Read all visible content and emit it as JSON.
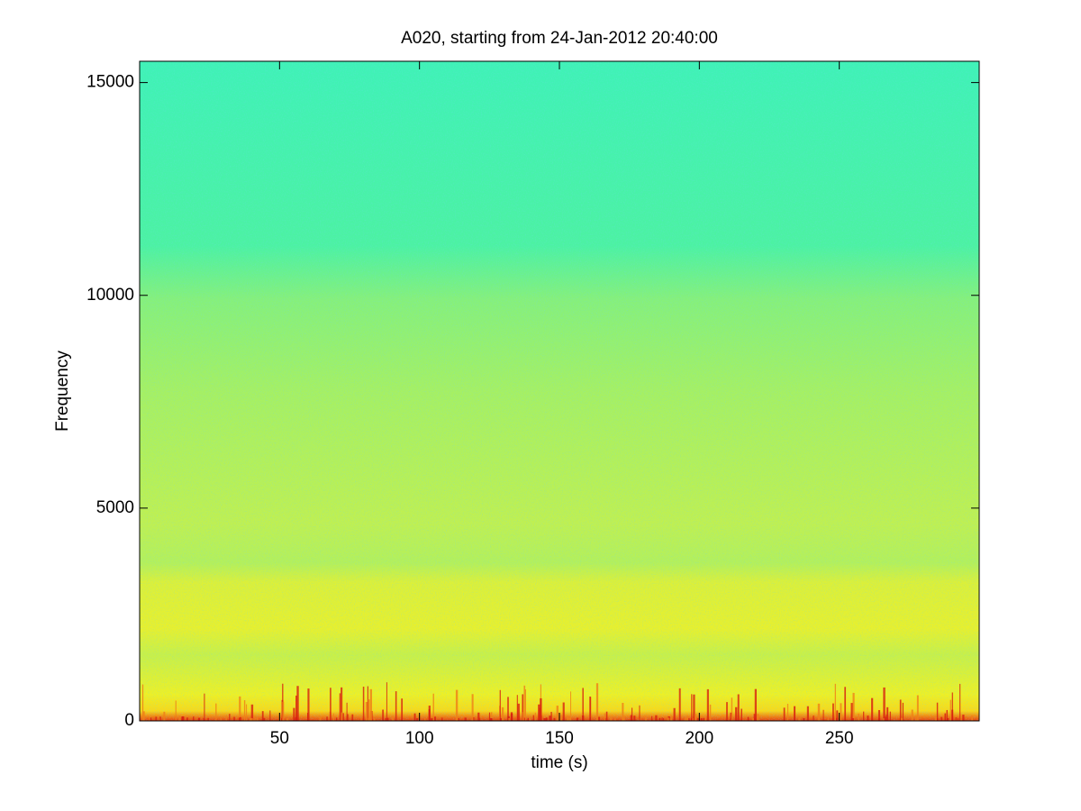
{
  "chart_data": {
    "type": "spectrogram",
    "title": "A020, starting from 24-Jan-2012 20:40:00",
    "x_label": "time (s)",
    "y_label": "Frequency",
    "xlim": [
      0,
      300
    ],
    "xticks": [
      50,
      100,
      150,
      200,
      250
    ],
    "ylim": [
      0,
      15500
    ],
    "yticks": [
      0,
      5000,
      10000,
      15000
    ]
  }
}
